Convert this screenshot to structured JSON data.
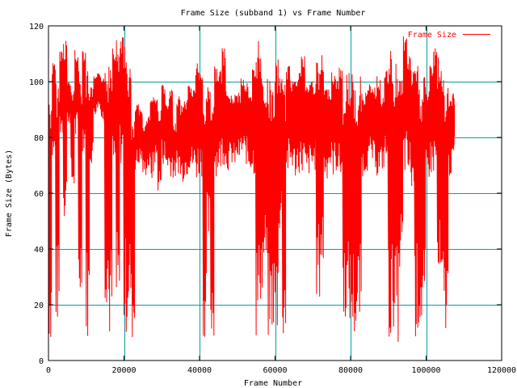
{
  "chart_data": {
    "type": "line",
    "title": "Frame Size (subband 1) vs Frame Number",
    "xlabel": "Frame Number",
    "ylabel": "Frame Size (Bytes)",
    "xlim": [
      0,
      120000
    ],
    "ylim": [
      0,
      120
    ],
    "xticks": [
      0,
      20000,
      40000,
      60000,
      80000,
      100000,
      120000
    ],
    "xtick_labels": [
      "0",
      "20000",
      "40000",
      "60000",
      "80000",
      "100000",
      "120000"
    ],
    "yticks": [
      0,
      20,
      40,
      60,
      80,
      100,
      120
    ],
    "ytick_labels": [
      "0",
      "20",
      "40",
      "60",
      "80",
      "100",
      "120"
    ],
    "grid": true,
    "legend_position": "top-right",
    "series": [
      {
        "name": "Frame Size",
        "color": "#ff0000",
        "x": [
          0,
          1000,
          2000,
          3000,
          4000,
          5000,
          6000,
          7000,
          8000,
          9000,
          10000,
          11000,
          12000,
          13000,
          14000,
          15000,
          16000,
          17000,
          18000,
          19000,
          20000,
          21000,
          22000,
          23000,
          24000,
          25000,
          26000,
          27000,
          28000,
          29000,
          30000,
          31000,
          32000,
          33000,
          34000,
          35000,
          36000,
          37000,
          38000,
          39000,
          40000,
          41000,
          42000,
          43000,
          44000,
          45000,
          46000,
          47000,
          48000,
          49000,
          50000,
          51000,
          52000,
          53000,
          54000,
          55000,
          56000,
          57000,
          58000,
          59000,
          60000,
          61000,
          62000,
          63000,
          64000,
          65000,
          66000,
          67000,
          68000,
          69000,
          70000,
          71000,
          72000,
          73000,
          74000,
          75000,
          76000,
          77000,
          78000,
          79000,
          80000,
          81000,
          82000,
          83000,
          84000,
          85000,
          86000,
          87000,
          88000,
          89000,
          90000,
          91000,
          92000,
          93000,
          94000,
          95000,
          96000,
          97000,
          98000,
          99000,
          100000,
          101000,
          102000,
          103000,
          104000,
          105000,
          106000,
          107000,
          107500
        ],
        "min": [
          6,
          70,
          12,
          80,
          50,
          85,
          60,
          78,
          20,
          75,
          8,
          70,
          88,
          90,
          85,
          20,
          6,
          65,
          10,
          70,
          9,
          15,
          6,
          68,
          70,
          66,
          68,
          64,
          70,
          60,
          70,
          68,
          66,
          65,
          67,
          64,
          66,
          68,
          67,
          64,
          66,
          8,
          40,
          6,
          66,
          68,
          70,
          68,
          70,
          69,
          71,
          72,
          70,
          68,
          66,
          6,
          20,
          30,
          6,
          10,
          8,
          45,
          6,
          66,
          68,
          65,
          67,
          66,
          64,
          66,
          68,
          20,
          30,
          65,
          68,
          66,
          67,
          64,
          15,
          12,
          8,
          6,
          10,
          66,
          68,
          70,
          69,
          65,
          68,
          70,
          6,
          12,
          6,
          30,
          66,
          64,
          60,
          8,
          10,
          6,
          65,
          66,
          66,
          20,
          10,
          9,
          66,
          70,
          80
        ],
        "max": [
          95,
          107,
          100,
          112,
          117,
          100,
          98,
          112,
          104,
          113,
          106,
          98,
          102,
          103,
          102,
          104,
          112,
          115,
          116,
          117,
          113,
          107,
          86,
          92,
          90,
          85,
          88,
          96,
          95,
          90,
          100,
          92,
          97,
          85,
          95,
          92,
          94,
          100,
          98,
          108,
          103,
          95,
          100,
          97,
          106,
          104,
          112,
          97,
          95,
          96,
          96,
          102,
          100,
          95,
          105,
          117,
          110,
          100,
          101,
          98,
          108,
          104,
          99,
          106,
          101,
          104,
          105,
          110,
          99,
          101,
          100,
          107,
          110,
          98,
          98,
          104,
          102,
          105,
          96,
          104,
          106,
          97,
          102,
          96,
          97,
          100,
          98,
          102,
          95,
          104,
          112,
          102,
          108,
          103,
          117,
          110,
          104,
          108,
          98,
          105,
          97,
          106,
          112,
          110,
          104,
          98,
          94,
          98,
          92
        ]
      }
    ]
  }
}
